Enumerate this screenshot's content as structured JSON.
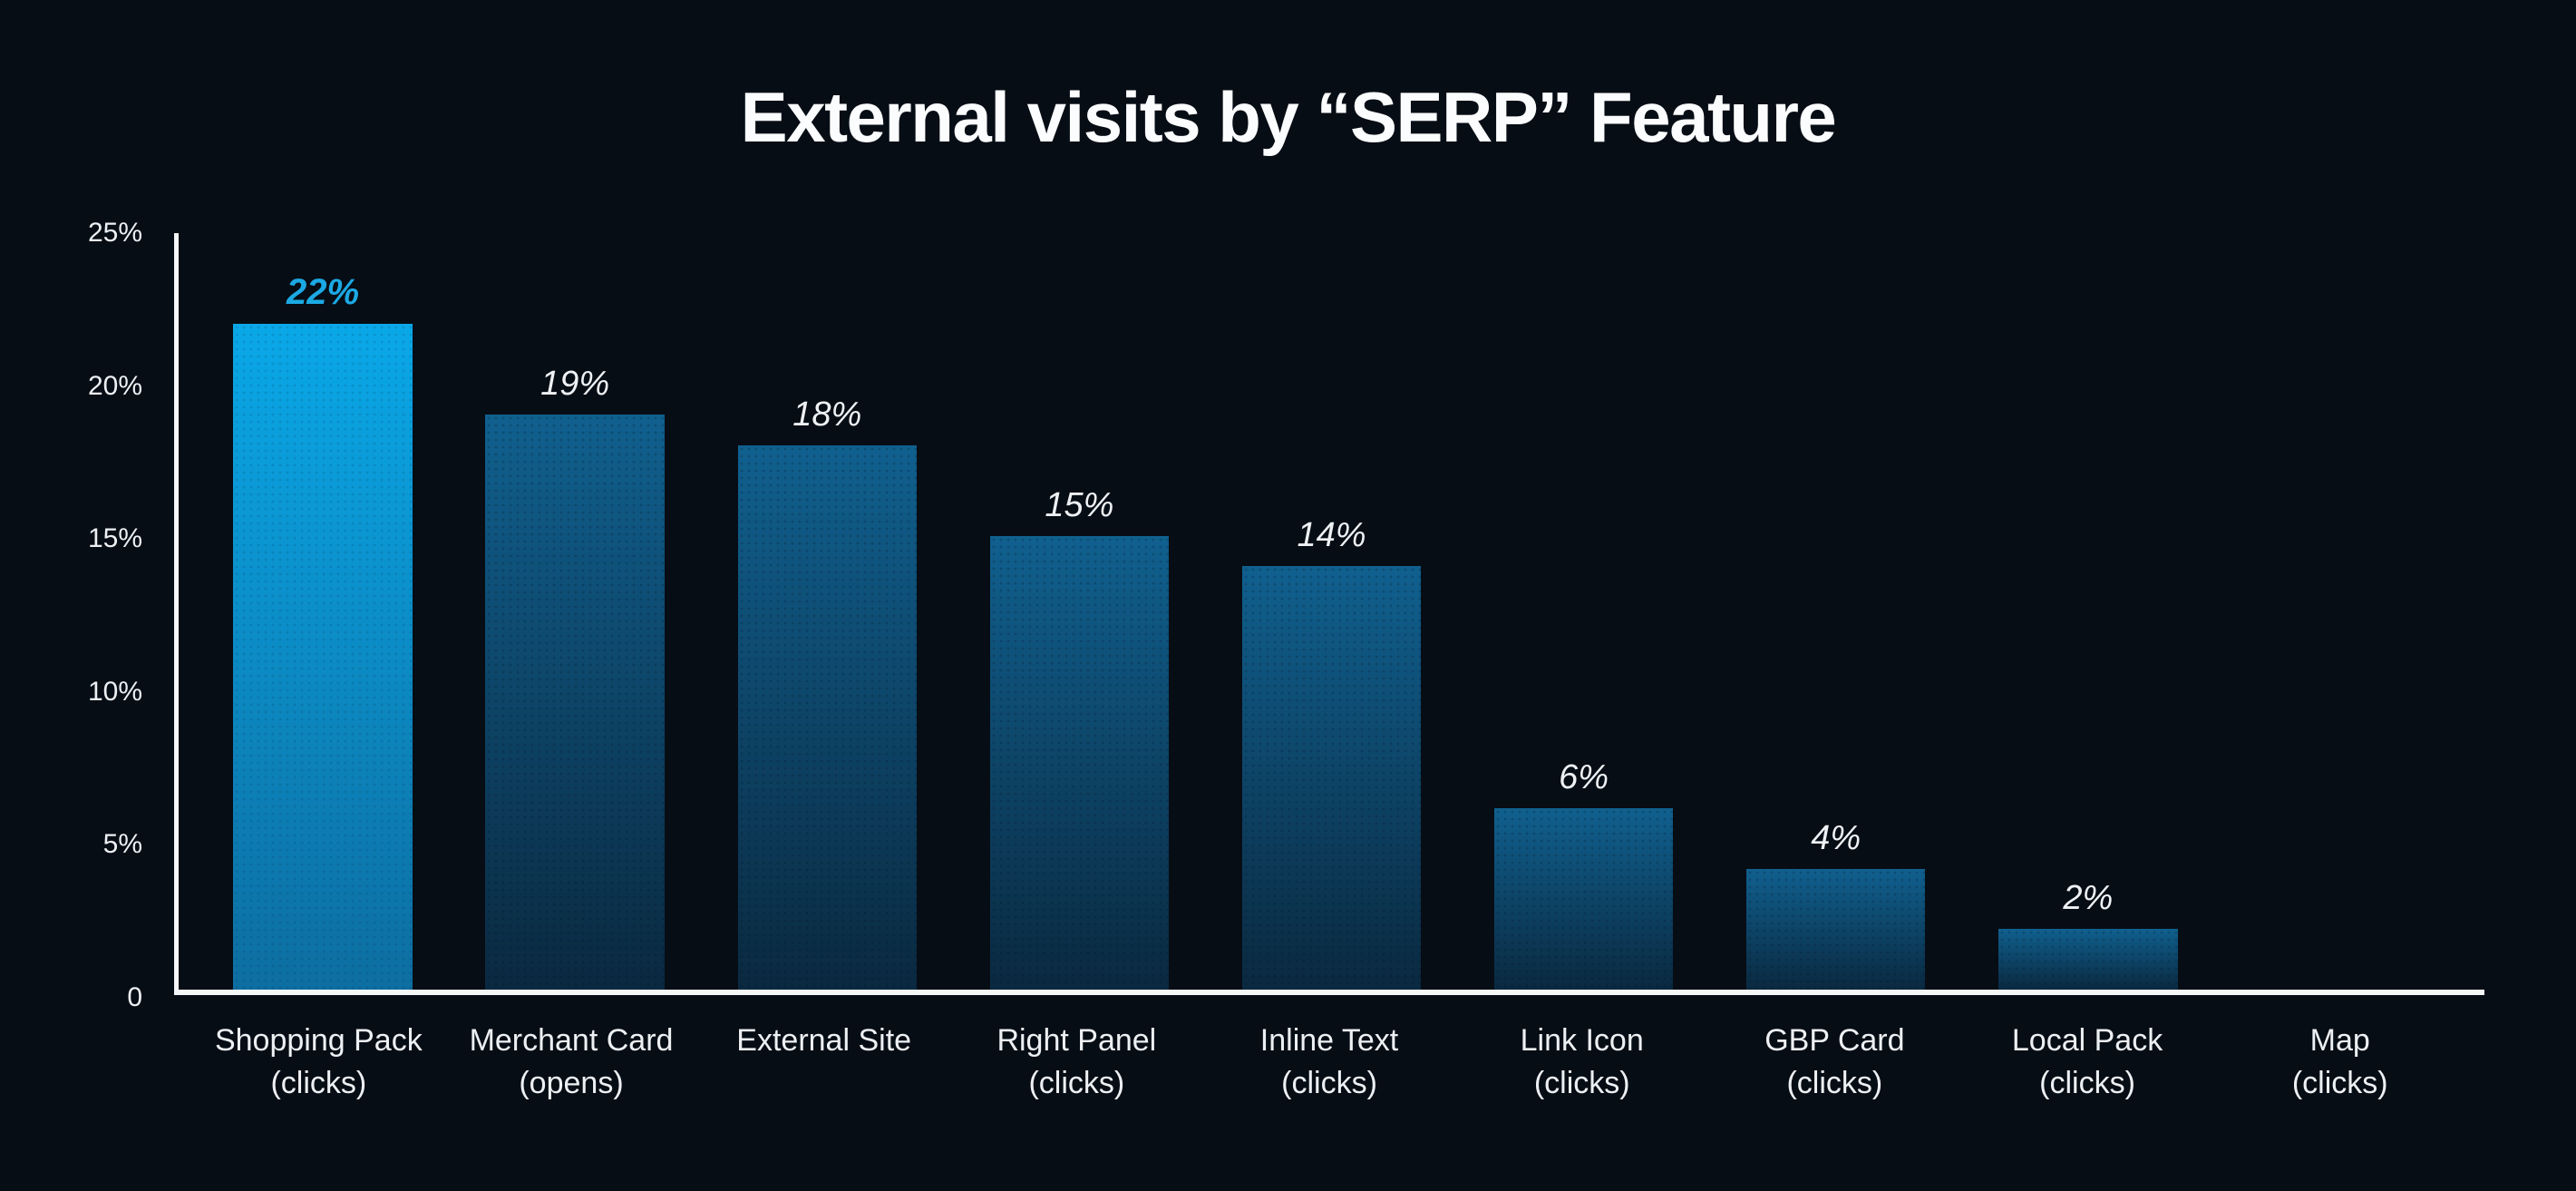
{
  "page": {
    "background": "#070d15"
  },
  "chart_data": {
    "type": "bar",
    "title": "External visits by “SERP” Feature",
    "xlabel": "",
    "ylabel": "",
    "ylim": [
      0,
      25
    ],
    "ytick_labels": [
      "25%",
      "20%",
      "15%",
      "10%",
      "5%",
      "0"
    ],
    "grid": false,
    "legend": false,
    "categories": [
      "Shopping Pack (clicks)",
      "Merchant Card (opens)",
      "External Site",
      "Right Panel (clicks)",
      "Inline Text (clicks)",
      "Link Icon (clicks)",
      "GBP Card (clicks)",
      "Local Pack (clicks)",
      "Map (clicks)"
    ],
    "values": [
      22,
      19,
      18,
      15,
      14,
      6,
      4,
      2,
      0
    ],
    "bars": [
      {
        "label": "Shopping Pack",
        "sublabel": "(clicks)",
        "value": 22,
        "value_label": "22%",
        "highlight": true
      },
      {
        "label": "Merchant Card",
        "sublabel": "(opens)",
        "value": 19,
        "value_label": "19%",
        "highlight": false
      },
      {
        "label": "External Site",
        "sublabel": "",
        "value": 18,
        "value_label": "18%",
        "highlight": false
      },
      {
        "label": "Right Panel",
        "sublabel": "(clicks)",
        "value": 15,
        "value_label": "15%",
        "highlight": false
      },
      {
        "label": "Inline Text",
        "sublabel": "(clicks)",
        "value": 14,
        "value_label": "14%",
        "highlight": false
      },
      {
        "label": "Link Icon",
        "sublabel": "(clicks)",
        "value": 6,
        "value_label": "6%",
        "highlight": false
      },
      {
        "label": "GBP Card",
        "sublabel": "(clicks)",
        "value": 4,
        "value_label": "4%",
        "highlight": false
      },
      {
        "label": "Local Pack",
        "sublabel": "(clicks)",
        "value": 2,
        "value_label": "2%",
        "highlight": false
      },
      {
        "label": "Map",
        "sublabel": "(clicks)",
        "value": 0,
        "value_label": "",
        "highlight": false
      }
    ],
    "colors": {
      "background": "#070d15",
      "axis": "#f4f6f8",
      "text": "#edf0f3",
      "bar_gradient_top": "#10608f",
      "bar_gradient_bottom": "#0a2940",
      "highlight_bar_gradient_top": "#0aa8e8",
      "highlight_bar_gradient_bottom": "#0d6ea1",
      "highlight_value_label": "#1ba9e4"
    }
  }
}
